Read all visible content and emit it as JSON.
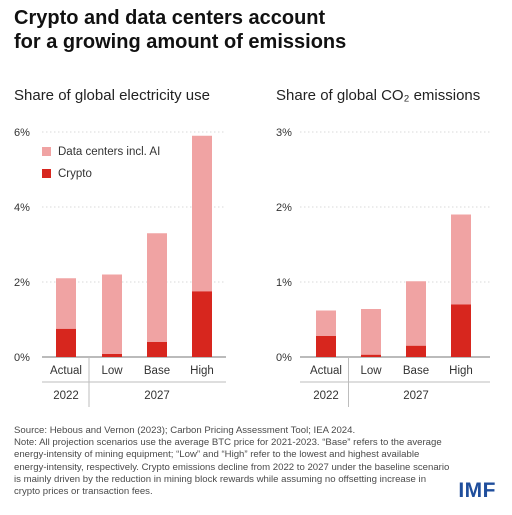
{
  "title_lines": [
    "Crypto and data centers account",
    "for a growing amount of emissions"
  ],
  "colors": {
    "crypto": "#d7261e",
    "datacenters": "#f0a3a3",
    "axis": "#9a9a9a",
    "text": "#333333"
  },
  "chart_data": [
    {
      "type": "bar",
      "stacked": true,
      "title": "Share of global electricity use",
      "categories": [
        "Actual",
        "Low",
        "Base",
        "High"
      ],
      "groups": [
        {
          "label": "2022",
          "categories": [
            "Actual"
          ]
        },
        {
          "label": "2027",
          "categories": [
            "Low",
            "Base",
            "High"
          ]
        }
      ],
      "ylim": [
        0,
        6
      ],
      "yticks": [
        "0%",
        "2%",
        "4%",
        "6%"
      ],
      "ytick_values": [
        0,
        2,
        4,
        6
      ],
      "legend": "top-left",
      "series": [
        {
          "name": "Crypto",
          "values": [
            0.75,
            0.08,
            0.4,
            1.75
          ]
        },
        {
          "name": "Data centers incl. AI",
          "values": [
            1.35,
            2.12,
            2.9,
            4.15
          ]
        }
      ]
    },
    {
      "type": "bar",
      "stacked": true,
      "title": "Share of global CO₂ emissions",
      "categories": [
        "Actual",
        "Low",
        "Base",
        "High"
      ],
      "groups": [
        {
          "label": "2022",
          "categories": [
            "Actual"
          ]
        },
        {
          "label": "2027",
          "categories": [
            "Low",
            "Base",
            "High"
          ]
        }
      ],
      "ylim": [
        0,
        3
      ],
      "yticks": [
        "0%",
        "1%",
        "2%",
        "3%"
      ],
      "ytick_values": [
        0,
        1,
        2,
        3
      ],
      "series": [
        {
          "values": [
            0.28,
            0.03,
            0.15,
            0.7
          ]
        },
        {
          "values": [
            0.34,
            0.61,
            0.86,
            1.2
          ]
        }
      ]
    }
  ],
  "notes": [
    "Source: Hebous and Vernon (2023); Carbon Pricing Assessment Tool; IEA 2024.",
    "Note: All projection scenarios use the average BTC price for 2021-2023. “Base” refers to the average energy-intensity of mining equipment; “Low” and “High” refer to the lowest and highest available energy-intensity, respectively. Crypto emissions decline from 2022 to 2027 under the baseline scenario is mainly driven by the reduction in mining block rewards while assuming no offsetting increase in crypto prices or transaction fees."
  ],
  "logo": "IMF"
}
